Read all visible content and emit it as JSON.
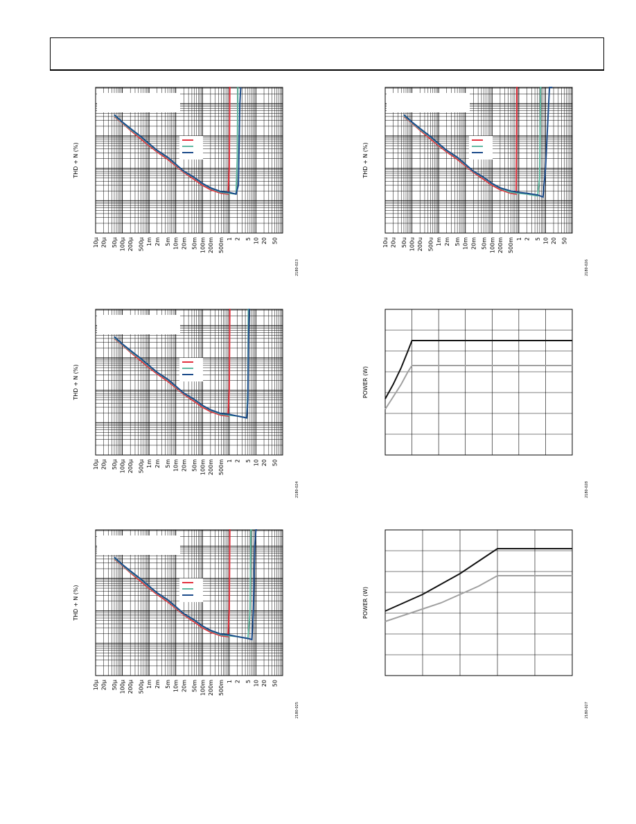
{
  "page": {},
  "chart_data": [
    {
      "id": "tl",
      "type": "line",
      "ylabel": "THD + N (%)",
      "y_scale": "log",
      "x_scale": "log",
      "xticks": [
        "10µ",
        "20µ",
        "50µ",
        "100µ",
        "200µ",
        "500µ",
        "1m",
        "2m",
        "5m",
        "10m",
        "20m",
        "50m",
        "100m",
        "200m",
        "500m",
        "1",
        "2",
        "5",
        "10",
        "20",
        "50"
      ],
      "figure_code": "2180-023",
      "series": [
        {
          "color": "#e2303c",
          "x": [
            5e-05,
            0.0001,
            0.0002,
            0.0005,
            0.001,
            0.002,
            0.005,
            0.01,
            0.02,
            0.05,
            0.1,
            0.2,
            0.5,
            0.9,
            1.0,
            1.05,
            1.1
          ],
          "y": [
            40,
            25,
            15,
            8,
            5,
            3.2,
            1.9,
            1.2,
            0.75,
            0.45,
            0.3,
            0.22,
            0.17,
            0.16,
            1.0,
            10000,
            100000
          ]
        },
        {
          "color": "#5fb8a0",
          "x": [
            5e-05,
            0.0001,
            0.0002,
            0.0005,
            0.001,
            0.002,
            0.005,
            0.01,
            0.02,
            0.05,
            0.1,
            0.2,
            0.5,
            1.0,
            1.8,
            2.0,
            2.1,
            2.2
          ],
          "y": [
            42,
            26,
            16,
            9,
            5.5,
            3.5,
            2.1,
            1.3,
            0.8,
            0.5,
            0.33,
            0.24,
            0.18,
            0.17,
            0.16,
            2.0,
            10000,
            100000
          ]
        },
        {
          "color": "#1a4a8a",
          "x": [
            5e-05,
            0.0001,
            0.0002,
            0.0005,
            0.001,
            0.002,
            0.005,
            0.01,
            0.02,
            0.05,
            0.1,
            0.2,
            0.5,
            1.0,
            1.8,
            2.2,
            2.5,
            2.7
          ],
          "y": [
            45,
            27,
            17,
            9.5,
            5.8,
            3.6,
            2.2,
            1.35,
            0.82,
            0.52,
            0.34,
            0.25,
            0.19,
            0.18,
            0.16,
            0.3,
            100,
            100000
          ]
        }
      ]
    },
    {
      "id": "tr",
      "type": "line",
      "ylabel": "THD + N (%)",
      "y_scale": "log",
      "x_scale": "log",
      "xticks": [
        "10u",
        "20u",
        "50u",
        "100u",
        "200u",
        "500u",
        "1m",
        "2m",
        "5m",
        "10m",
        "20m",
        "50m",
        "100m",
        "200m",
        "500m",
        "1",
        "2",
        "5",
        "10",
        "20",
        "50"
      ],
      "figure_code": "2180-026",
      "series": [
        {
          "color": "#e2303c",
          "x": [
            5e-05,
            0.0001,
            0.0002,
            0.0005,
            0.001,
            0.002,
            0.005,
            0.01,
            0.02,
            0.05,
            0.1,
            0.2,
            0.5,
            0.8,
            0.85,
            0.9
          ],
          "y": [
            40,
            25,
            15,
            8,
            5,
            3.2,
            1.9,
            1.2,
            0.75,
            0.45,
            0.3,
            0.22,
            0.17,
            0.16,
            1000,
            100000
          ]
        },
        {
          "color": "#5fb8a0",
          "x": [
            5e-05,
            0.0001,
            0.0002,
            0.0005,
            0.001,
            0.002,
            0.005,
            0.01,
            0.02,
            0.05,
            0.1,
            0.2,
            0.5,
            1.0,
            2.0,
            5.0,
            6.0,
            6.5,
            7.0
          ],
          "y": [
            42,
            26,
            16,
            9,
            5.5,
            3.5,
            2.1,
            1.3,
            0.8,
            0.5,
            0.33,
            0.24,
            0.18,
            0.17,
            0.16,
            0.14,
            0.5,
            1000,
            100000
          ]
        },
        {
          "color": "#1a4a8a",
          "x": [
            5e-05,
            0.0001,
            0.0002,
            0.0005,
            0.001,
            0.002,
            0.005,
            0.01,
            0.02,
            0.05,
            0.1,
            0.2,
            0.5,
            1.0,
            2.0,
            5.0,
            8.0,
            10,
            14,
            18
          ],
          "y": [
            45,
            27,
            17,
            9.5,
            5.8,
            3.6,
            2.2,
            1.35,
            0.82,
            0.52,
            0.34,
            0.25,
            0.2,
            0.18,
            0.17,
            0.15,
            0.13,
            1.0,
            1000,
            100000
          ]
        }
      ]
    },
    {
      "id": "ml",
      "type": "line",
      "ylabel": "THD + N (%)",
      "y_scale": "log",
      "x_scale": "log",
      "xticks": [
        "10µ",
        "20µ",
        "50µ",
        "100µ",
        "200µ",
        "500µ",
        "1m",
        "2m",
        "5m",
        "10m",
        "20m",
        "50m",
        "100m",
        "200m",
        "500m",
        "1",
        "2",
        "5",
        "10",
        "20",
        "50"
      ],
      "figure_code": "2180-024",
      "series": [
        {
          "color": "#e2303c",
          "x": [
            5e-05,
            0.0001,
            0.0002,
            0.0005,
            0.001,
            0.002,
            0.005,
            0.01,
            0.02,
            0.05,
            0.1,
            0.2,
            0.5,
            0.9,
            1.0,
            1.05,
            1.1
          ],
          "y": [
            40,
            25,
            15,
            8,
            5,
            3.2,
            1.9,
            1.2,
            0.75,
            0.45,
            0.3,
            0.22,
            0.17,
            0.16,
            1.0,
            10000,
            100000
          ]
        },
        {
          "color": "#5fb8a0",
          "x": [
            5e-05,
            0.0001,
            0.0002,
            0.0005,
            0.001,
            0.002,
            0.005,
            0.01,
            0.02,
            0.05,
            0.1,
            0.2,
            0.5,
            1.0,
            2.0,
            4.5,
            5.0,
            5.2,
            5.4
          ],
          "y": [
            42,
            26,
            16,
            9,
            5.5,
            3.5,
            2.1,
            1.3,
            0.8,
            0.5,
            0.33,
            0.24,
            0.18,
            0.17,
            0.16,
            0.14,
            1.0,
            10000,
            100000
          ]
        },
        {
          "color": "#1a4a8a",
          "x": [
            5e-05,
            0.0001,
            0.0002,
            0.0005,
            0.001,
            0.002,
            0.005,
            0.01,
            0.02,
            0.05,
            0.1,
            0.2,
            0.5,
            1.0,
            2.0,
            4.5,
            5.0,
            5.3,
            5.6,
            5.8
          ],
          "y": [
            45,
            27,
            17,
            9.5,
            5.8,
            3.6,
            2.2,
            1.35,
            0.82,
            0.52,
            0.34,
            0.25,
            0.19,
            0.18,
            0.16,
            0.14,
            0.5,
            50,
            10000,
            100000
          ]
        }
      ]
    },
    {
      "id": "mr",
      "type": "line",
      "ylabel": "POWER (W)",
      "x_scale": "linear",
      "y_scale": "linear",
      "figure_code": "2180-028",
      "series": [
        {
          "color": "#111111",
          "x": [
            0,
            0.3,
            0.6,
            0.85,
            1.0,
            1.5,
            2.0,
            3.0,
            4.0,
            4.5
          ],
          "y": [
            2.7,
            3.4,
            4.2,
            5.0,
            5.5,
            5.5,
            5.5,
            5.5,
            5.5,
            5.5
          ]
        },
        {
          "color": "#a0a0a0",
          "x": [
            0,
            0.3,
            0.6,
            0.85,
            1.0,
            1.5,
            2.0,
            3.0,
            4.0,
            4.5
          ],
          "y": [
            2.2,
            2.8,
            3.4,
            4.0,
            4.3,
            4.3,
            4.3,
            4.3,
            4.3,
            4.3
          ]
        }
      ]
    },
    {
      "id": "bl",
      "type": "line",
      "ylabel": "THD + N (%)",
      "y_scale": "log",
      "x_scale": "log",
      "xticks": [
        "10µ",
        "20µ",
        "50µ",
        "100µ",
        "200µ",
        "500µ",
        "1m",
        "2m",
        "5m",
        "10m",
        "20m",
        "50m",
        "100m",
        "200m",
        "500m",
        "1",
        "2",
        "5",
        "10",
        "20",
        "50"
      ],
      "figure_code": "2180-025",
      "series": [
        {
          "color": "#e2303c",
          "x": [
            5e-05,
            0.0001,
            0.0002,
            0.0005,
            0.001,
            0.002,
            0.005,
            0.01,
            0.02,
            0.05,
            0.1,
            0.2,
            0.5,
            0.9,
            1.0,
            1.05,
            1.1
          ],
          "y": [
            40,
            25,
            15,
            8,
            5,
            3.2,
            1.9,
            1.2,
            0.75,
            0.45,
            0.3,
            0.22,
            0.17,
            0.16,
            1.0,
            10000,
            100000
          ]
        },
        {
          "color": "#5fb8a0",
          "x": [
            5e-05,
            0.0001,
            0.0002,
            0.0005,
            0.001,
            0.002,
            0.005,
            0.01,
            0.02,
            0.05,
            0.1,
            0.2,
            0.5,
            1.0,
            2.0,
            5.0,
            6.0,
            6.5,
            7.0
          ],
          "y": [
            42,
            26,
            16,
            9,
            5.5,
            3.5,
            2.1,
            1.3,
            0.8,
            0.5,
            0.33,
            0.24,
            0.18,
            0.17,
            0.16,
            0.14,
            1.0,
            10000,
            100000
          ]
        },
        {
          "color": "#1a4a8a",
          "x": [
            5e-05,
            0.0001,
            0.0002,
            0.0005,
            0.001,
            0.002,
            0.005,
            0.01,
            0.02,
            0.05,
            0.1,
            0.2,
            0.5,
            1.0,
            2.0,
            5.0,
            7.0,
            8.0,
            9.0,
            10,
            11
          ],
          "y": [
            45,
            27,
            17,
            9.5,
            5.8,
            3.6,
            2.2,
            1.35,
            0.82,
            0.52,
            0.34,
            0.25,
            0.19,
            0.18,
            0.16,
            0.14,
            0.13,
            1.0,
            100,
            10000,
            100000
          ]
        }
      ]
    },
    {
      "id": "br",
      "type": "line",
      "ylabel": "POWER (W)",
      "x_scale": "linear",
      "y_scale": "linear",
      "figure_code": "2180-027",
      "series": [
        {
          "color": "#111111",
          "x": [
            0,
            0.5,
            1.0,
            1.5,
            2.0,
            2.5,
            3.0,
            3.5,
            4.0,
            4.5,
            5.0
          ],
          "y": [
            3.1,
            3.5,
            3.9,
            4.4,
            4.9,
            5.5,
            6.1,
            6.1,
            6.1,
            6.1,
            6.1
          ]
        },
        {
          "color": "#a0a0a0",
          "x": [
            0,
            0.5,
            1.0,
            1.5,
            2.0,
            2.5,
            3.0,
            3.5,
            4.0,
            4.5,
            5.0
          ],
          "y": [
            2.6,
            2.9,
            3.2,
            3.5,
            3.9,
            4.3,
            4.8,
            4.8,
            4.8,
            4.8,
            4.8
          ]
        }
      ]
    }
  ]
}
